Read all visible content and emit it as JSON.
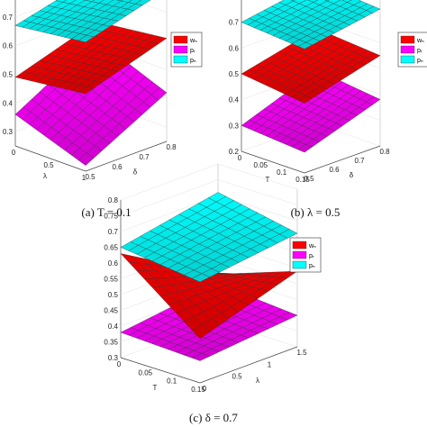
{
  "colors": {
    "w_n": "#ff0000",
    "p_r": "#ff00ff",
    "p_n": "#00ffff",
    "mesh": "#333333",
    "axis": "#444444"
  },
  "chart_data": [
    {
      "type": "surface",
      "caption": "(a) T = 0.1",
      "xlabel": "λ",
      "ylabel": "δ",
      "xticks": [
        "0",
        "0.5",
        "1"
      ],
      "yticks": [
        "0.5",
        "0.6",
        "0.7",
        "0.8"
      ],
      "zticks": [
        "0.3",
        "0.4",
        "0.5",
        "0.6",
        "0.7"
      ],
      "zlim": [
        0.25,
        0.8
      ],
      "series": [
        {
          "name": "w_n",
          "legend": "wₙ",
          "corner_values": {
            "x0y0": 0.52,
            "x1y0": 0.49,
            "x0y1": 0.61,
            "x1y1": 0.58
          }
        },
        {
          "name": "p_r",
          "legend": "pᵣ",
          "corner_values": {
            "x0y0": 0.27,
            "x1y0": 0.36,
            "x0y1": 0.42,
            "x1y1": 0.52
          }
        },
        {
          "name": "p_n",
          "legend": "pₙ",
          "corner_values": {
            "x0y0": 0.7,
            "x1y0": 0.67,
            "x0y1": 0.78,
            "x1y1": 0.74
          }
        }
      ]
    },
    {
      "type": "surface",
      "caption": "(b) λ = 0.5",
      "xlabel": "T",
      "ylabel": "δ",
      "xticks": [
        "0",
        "0.05",
        "0.1",
        "0.15"
      ],
      "yticks": [
        "0.5",
        "0.6",
        "0.7",
        "0.8"
      ],
      "zticks": [
        "0.2",
        "0.3",
        "0.4",
        "0.5",
        "0.6",
        "0.7",
        "0.8"
      ],
      "zlim": [
        0.2,
        0.8
      ],
      "series": [
        {
          "name": "w_n",
          "legend": "wₙ",
          "corner_values": {
            "x0y0": 0.47,
            "x1y0": 0.5,
            "x0y1": 0.55,
            "x1y1": 0.57
          }
        },
        {
          "name": "p_r",
          "legend": "pᵣ",
          "corner_values": {
            "x0y0": 0.28,
            "x1y0": 0.3,
            "x0y1": 0.38,
            "x1y1": 0.41
          }
        },
        {
          "name": "p_n",
          "legend": "pₙ",
          "corner_values": {
            "x0y0": 0.68,
            "x1y0": 0.7,
            "x0y1": 0.73,
            "x1y1": 0.75
          }
        }
      ]
    },
    {
      "type": "surface",
      "caption": "(c) δ = 0.7",
      "xlabel": "T",
      "ylabel": "λ",
      "xticks": [
        "0",
        "0.05",
        "0.1",
        "0.15"
      ],
      "yticks": [
        "0",
        "0.5",
        "1",
        "1.5"
      ],
      "zticks": [
        "0.3",
        "0.35",
        "0.4",
        "0.45",
        "0.5",
        "0.55",
        "0.6",
        "0.65",
        "0.7",
        "0.75",
        "0.8"
      ],
      "zlim": [
        0.3,
        0.8
      ],
      "series": [
        {
          "name": "w_n",
          "legend": "wₙ",
          "corner_values": {
            "x0y0": 0.44,
            "x1y0": 0.63,
            "x0y1": 0.54,
            "x1y1": 0.45
          }
        },
        {
          "name": "p_r",
          "legend": "pᵣ",
          "corner_values": {
            "x0y0": 0.37,
            "x1y0": 0.38,
            "x0y1": 0.4,
            "x1y1": 0.42
          }
        },
        {
          "name": "p_n",
          "legend": "pₙ",
          "corner_values": {
            "x0y0": 0.62,
            "x1y0": 0.65,
            "x0y1": 0.66,
            "x1y1": 0.71
          }
        }
      ]
    }
  ]
}
